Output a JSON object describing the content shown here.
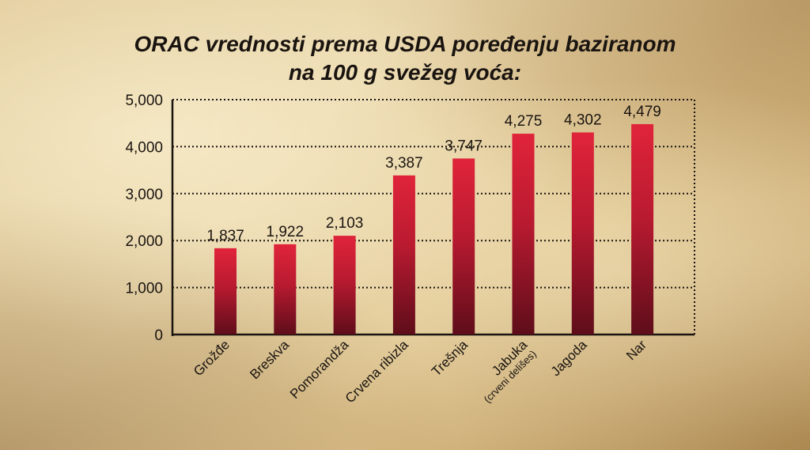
{
  "chart_data": {
    "type": "bar",
    "title_line1": "ORAC vrednosti prema USDA poređenju baziranom",
    "title_line2": "na 100 g svežeg voća:",
    "categories": [
      [
        "Grožđe"
      ],
      [
        "Breskva"
      ],
      [
        "Pomorandža"
      ],
      [
        "Crvena ribizla"
      ],
      [
        "Trešnja"
      ],
      [
        "Jabuka",
        "(crveni delišes)"
      ],
      [
        "Jagoda"
      ],
      [
        "Nar"
      ]
    ],
    "values": [
      1837,
      1922,
      2103,
      3387,
      3747,
      4275,
      4302,
      4479
    ],
    "value_labels": [
      "1,837",
      "1,922",
      "2,103",
      "3,387",
      "3,747",
      "4,275",
      "4,302",
      "4,479"
    ],
    "ylim": [
      0,
      5000
    ],
    "yticks": [
      0,
      1000,
      2000,
      3000,
      4000,
      5000
    ],
    "ytick_labels": [
      "0",
      "1,000",
      "2,000",
      "3,000",
      "4,000",
      "5,000"
    ],
    "grid": true,
    "bar_color_top": "#e0243a",
    "bar_color_bottom": "#5e0d1a"
  }
}
